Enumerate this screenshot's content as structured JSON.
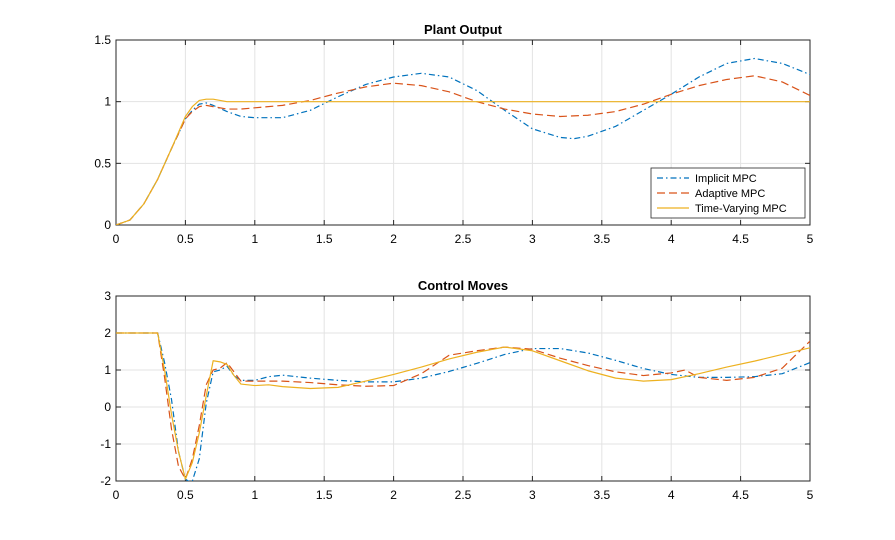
{
  "chart_data": [
    {
      "type": "line",
      "title": "Plant Output",
      "xlabel": "",
      "ylabel": "",
      "xlim": [
        0,
        5
      ],
      "ylim": [
        0,
        1.5
      ],
      "xticks": [
        0,
        0.5,
        1,
        1.5,
        2,
        2.5,
        3,
        3.5,
        4,
        4.5,
        5
      ],
      "xtick_labels": [
        "0",
        "0.5",
        "1",
        "1.5",
        "2",
        "2.5",
        "3",
        "3.5",
        "4",
        "4.5",
        "5"
      ],
      "yticks": [
        0,
        0.5,
        1,
        1.5
      ],
      "ytick_labels": [
        "0",
        "0.5",
        "1",
        "1.5"
      ],
      "grid": true,
      "legend_position": "bottom-right",
      "series": [
        {
          "name": "Implicit MPC",
          "color": "#0072BD",
          "style": "dashdot",
          "x": [
            0,
            0.1,
            0.2,
            0.3,
            0.4,
            0.5,
            0.55,
            0.6,
            0.65,
            0.7,
            0.8,
            0.9,
            1.0,
            1.2,
            1.4,
            1.6,
            1.8,
            2.0,
            2.2,
            2.4,
            2.6,
            2.8,
            3.0,
            3.2,
            3.3,
            3.4,
            3.6,
            3.8,
            4.0,
            4.2,
            4.4,
            4.6,
            4.8,
            5.0
          ],
          "y": [
            0,
            0.04,
            0.17,
            0.37,
            0.62,
            0.86,
            0.93,
            0.98,
            0.99,
            0.97,
            0.92,
            0.88,
            0.87,
            0.87,
            0.93,
            1.04,
            1.14,
            1.2,
            1.23,
            1.2,
            1.09,
            0.93,
            0.78,
            0.71,
            0.7,
            0.72,
            0.8,
            0.93,
            1.06,
            1.2,
            1.31,
            1.35,
            1.31,
            1.22
          ]
        },
        {
          "name": "Adaptive MPC",
          "color": "#D95319",
          "style": "dashed",
          "x": [
            0,
            0.1,
            0.2,
            0.3,
            0.4,
            0.5,
            0.55,
            0.6,
            0.65,
            0.7,
            0.8,
            0.9,
            1.0,
            1.2,
            1.4,
            1.6,
            1.8,
            2.0,
            2.2,
            2.4,
            2.6,
            2.8,
            3.0,
            3.2,
            3.4,
            3.6,
            3.8,
            4.0,
            4.2,
            4.4,
            4.6,
            4.8,
            5.0
          ],
          "y": [
            0,
            0.04,
            0.17,
            0.37,
            0.62,
            0.86,
            0.92,
            0.96,
            0.97,
            0.96,
            0.94,
            0.94,
            0.95,
            0.97,
            1.01,
            1.07,
            1.12,
            1.15,
            1.13,
            1.08,
            1.0,
            0.94,
            0.9,
            0.88,
            0.89,
            0.92,
            0.98,
            1.06,
            1.13,
            1.18,
            1.21,
            1.16,
            1.05
          ]
        },
        {
          "name": "Time-Varying MPC",
          "color": "#EDB120",
          "style": "solid",
          "x": [
            0,
            0.1,
            0.2,
            0.3,
            0.4,
            0.5,
            0.55,
            0.6,
            0.65,
            0.7,
            0.75,
            0.8,
            0.9,
            1.0,
            1.5,
            2.0,
            2.5,
            3.0,
            3.5,
            4.0,
            4.5,
            5.0
          ],
          "y": [
            0,
            0.04,
            0.17,
            0.37,
            0.62,
            0.88,
            0.96,
            1.01,
            1.02,
            1.02,
            1.01,
            1.0,
            1.0,
            1.0,
            1.0,
            1.0,
            1.0,
            1.0,
            1.0,
            1.0,
            1.0,
            1.0
          ]
        }
      ]
    },
    {
      "type": "line",
      "title": "Control Moves",
      "xlabel": "",
      "ylabel": "",
      "xlim": [
        0,
        5
      ],
      "ylim": [
        -2,
        3
      ],
      "xticks": [
        0,
        0.5,
        1,
        1.5,
        2,
        2.5,
        3,
        3.5,
        4,
        4.5,
        5
      ],
      "xtick_labels": [
        "0",
        "0.5",
        "1",
        "1.5",
        "2",
        "2.5",
        "3",
        "3.5",
        "4",
        "4.5",
        "5"
      ],
      "yticks": [
        -2,
        -1,
        0,
        1,
        2,
        3
      ],
      "ytick_labels": [
        "-2",
        "-1",
        "0",
        "1",
        "2",
        "3"
      ],
      "grid": true,
      "series": [
        {
          "name": "Implicit MPC",
          "color": "#0072BD",
          "style": "dashdot",
          "x": [
            0,
            0.1,
            0.2,
            0.3,
            0.35,
            0.4,
            0.45,
            0.5,
            0.52,
            0.55,
            0.6,
            0.65,
            0.7,
            0.75,
            0.8,
            0.85,
            0.9,
            1.0,
            1.1,
            1.2,
            1.4,
            1.6,
            1.8,
            2.0,
            2.2,
            2.4,
            2.6,
            2.8,
            3.0,
            3.2,
            3.4,
            3.6,
            3.8,
            4.0,
            4.2,
            4.4,
            4.6,
            4.8,
            5.0
          ],
          "y": [
            2,
            2,
            2,
            2,
            1.2,
            0.2,
            -1.2,
            -1.95,
            -2.0,
            -2.0,
            -1.4,
            0.1,
            0.95,
            1.0,
            1.1,
            0.85,
            0.72,
            0.72,
            0.82,
            0.86,
            0.78,
            0.72,
            0.68,
            0.68,
            0.78,
            0.96,
            1.18,
            1.42,
            1.58,
            1.58,
            1.46,
            1.26,
            1.04,
            0.88,
            0.8,
            0.8,
            0.82,
            0.9,
            1.2
          ]
        },
        {
          "name": "Adaptive MPC",
          "color": "#D95319",
          "style": "dashed",
          "x": [
            0,
            0.1,
            0.2,
            0.3,
            0.35,
            0.4,
            0.45,
            0.5,
            0.55,
            0.6,
            0.65,
            0.7,
            0.75,
            0.8,
            0.85,
            0.9,
            1.0,
            1.2,
            1.4,
            1.6,
            1.8,
            2.0,
            2.2,
            2.4,
            2.6,
            2.8,
            3.0,
            3.2,
            3.4,
            3.6,
            3.8,
            4.0,
            4.1,
            4.2,
            4.4,
            4.6,
            4.8,
            5.0
          ],
          "y": [
            2,
            2,
            2,
            2,
            0.8,
            -0.6,
            -1.6,
            -1.95,
            -1.4,
            -0.5,
            0.6,
            1.0,
            1.05,
            1.2,
            0.95,
            0.7,
            0.7,
            0.7,
            0.66,
            0.6,
            0.56,
            0.58,
            0.9,
            1.4,
            1.52,
            1.62,
            1.56,
            1.32,
            1.12,
            0.95,
            0.85,
            0.92,
            1.0,
            0.8,
            0.72,
            0.8,
            1.05,
            1.78
          ]
        },
        {
          "name": "Time-Varying MPC",
          "color": "#EDB120",
          "style": "solid",
          "x": [
            0,
            0.1,
            0.2,
            0.3,
            0.35,
            0.4,
            0.45,
            0.5,
            0.55,
            0.6,
            0.65,
            0.7,
            0.75,
            0.8,
            0.85,
            0.9,
            1.0,
            1.1,
            1.2,
            1.4,
            1.6,
            1.8,
            2.0,
            2.2,
            2.4,
            2.6,
            2.8,
            3.0,
            3.2,
            3.4,
            3.6,
            3.8,
            4.0,
            4.2,
            4.4,
            4.6,
            4.8,
            5.0
          ],
          "y": [
            2,
            2,
            2,
            2,
            1.0,
            -0.2,
            -1.2,
            -1.95,
            -1.5,
            -0.7,
            0.3,
            1.25,
            1.22,
            1.15,
            0.85,
            0.62,
            0.58,
            0.6,
            0.55,
            0.5,
            0.53,
            0.7,
            0.88,
            1.08,
            1.3,
            1.48,
            1.62,
            1.52,
            1.25,
            0.98,
            0.78,
            0.7,
            0.74,
            0.9,
            1.08,
            1.24,
            1.42,
            1.6
          ]
        }
      ]
    }
  ]
}
